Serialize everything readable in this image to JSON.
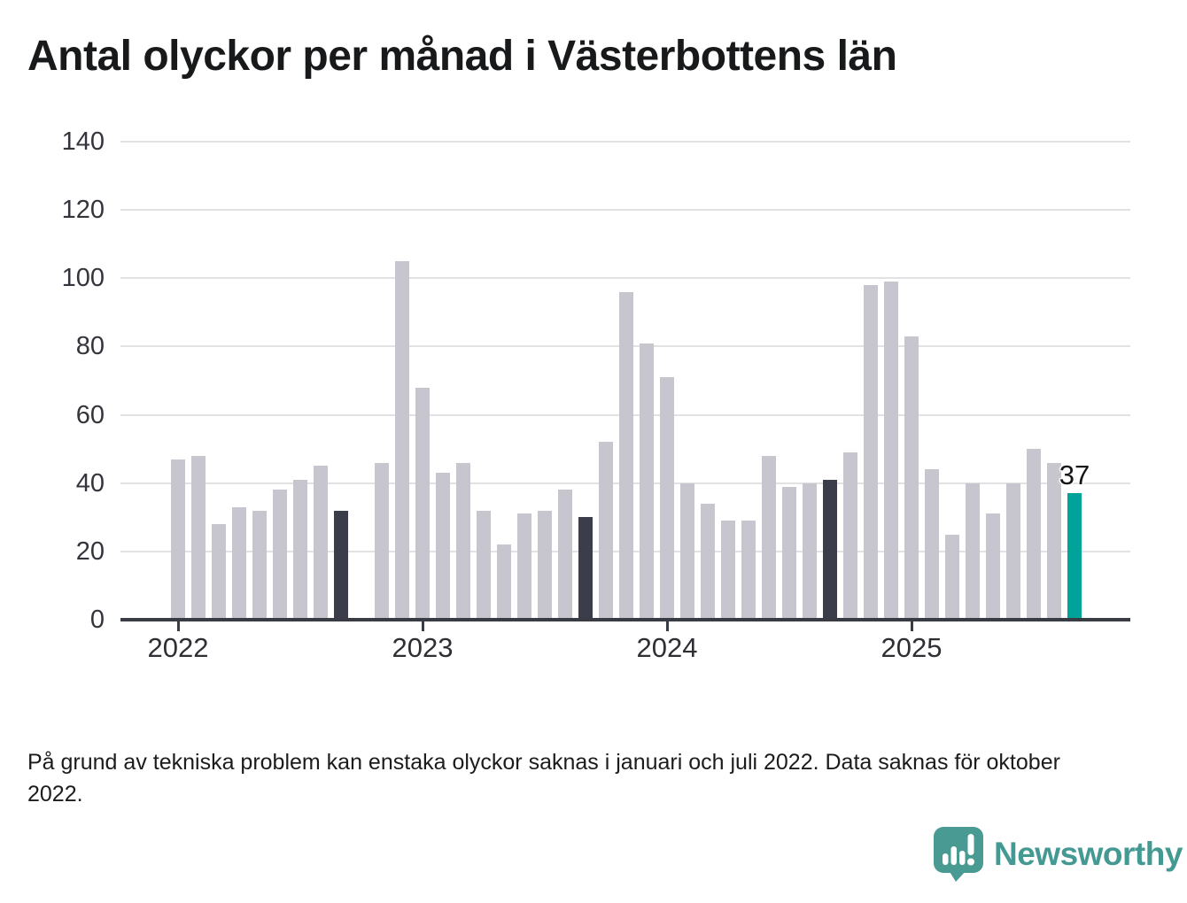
{
  "title": "Antal olyckor per månad i Västerbottens län",
  "footnote": "På grund av tekniska problem kan enstaka olyckor saknas i januari och juli 2022. Data saknas för oktober 2022.",
  "logo": {
    "brand": "Newsworthy",
    "icon": "newsworthy-speech-bubble-bar-chart-icon"
  },
  "colors": {
    "bar": "#c7c6cf",
    "bar_dark": "#3b3d4b",
    "bar_teal": "#00a39a",
    "grid": "#e2e2e4",
    "axis": "#3a3c44",
    "logo_teal": "#449a93",
    "text": "#18191a"
  },
  "chart_data": {
    "type": "bar",
    "title": "Antal olyckor per månad i Västerbottens län",
    "xlabel": "",
    "ylabel": "",
    "ylim": [
      0,
      140
    ],
    "yticks": [
      0,
      20,
      40,
      60,
      80,
      100,
      120,
      140
    ],
    "grid": "horizontal",
    "legend": "none",
    "year_ticks": [
      "2022",
      "2023",
      "2024",
      "2025"
    ],
    "annotation": {
      "label": "37",
      "month": "2025-09"
    },
    "highlight_note": "September bars 2022-2024 dark; September 2025 teal; October 2022 missing",
    "months": [
      {
        "month": "2022-01",
        "value": 47,
        "style": "normal"
      },
      {
        "month": "2022-02",
        "value": 48,
        "style": "normal"
      },
      {
        "month": "2022-03",
        "value": 28,
        "style": "normal"
      },
      {
        "month": "2022-04",
        "value": 33,
        "style": "normal"
      },
      {
        "month": "2022-05",
        "value": 32,
        "style": "normal"
      },
      {
        "month": "2022-06",
        "value": 38,
        "style": "normal"
      },
      {
        "month": "2022-07",
        "value": 41,
        "style": "normal"
      },
      {
        "month": "2022-08",
        "value": 45,
        "style": "normal"
      },
      {
        "month": "2022-09",
        "value": 32,
        "style": "dark"
      },
      {
        "month": "2022-10",
        "value": null,
        "style": "missing"
      },
      {
        "month": "2022-11",
        "value": 46,
        "style": "normal"
      },
      {
        "month": "2022-12",
        "value": 105,
        "style": "normal"
      },
      {
        "month": "2023-01",
        "value": 68,
        "style": "normal"
      },
      {
        "month": "2023-02",
        "value": 43,
        "style": "normal"
      },
      {
        "month": "2023-03",
        "value": 46,
        "style": "normal"
      },
      {
        "month": "2023-04",
        "value": 32,
        "style": "normal"
      },
      {
        "month": "2023-05",
        "value": 22,
        "style": "normal"
      },
      {
        "month": "2023-06",
        "value": 31,
        "style": "normal"
      },
      {
        "month": "2023-07",
        "value": 32,
        "style": "normal"
      },
      {
        "month": "2023-08",
        "value": 38,
        "style": "normal"
      },
      {
        "month": "2023-09",
        "value": 30,
        "style": "dark"
      },
      {
        "month": "2023-10",
        "value": 52,
        "style": "normal"
      },
      {
        "month": "2023-11",
        "value": 96,
        "style": "normal"
      },
      {
        "month": "2023-12",
        "value": 81,
        "style": "normal"
      },
      {
        "month": "2024-01",
        "value": 71,
        "style": "normal"
      },
      {
        "month": "2024-02",
        "value": 40,
        "style": "normal"
      },
      {
        "month": "2024-03",
        "value": 34,
        "style": "normal"
      },
      {
        "month": "2024-04",
        "value": 29,
        "style": "normal"
      },
      {
        "month": "2024-05",
        "value": 29,
        "style": "normal"
      },
      {
        "month": "2024-06",
        "value": 48,
        "style": "normal"
      },
      {
        "month": "2024-07",
        "value": 39,
        "style": "normal"
      },
      {
        "month": "2024-08",
        "value": 40,
        "style": "normal"
      },
      {
        "month": "2024-09",
        "value": 41,
        "style": "dark"
      },
      {
        "month": "2024-10",
        "value": 49,
        "style": "normal"
      },
      {
        "month": "2024-11",
        "value": 98,
        "style": "normal"
      },
      {
        "month": "2024-12",
        "value": 99,
        "style": "normal"
      },
      {
        "month": "2025-01",
        "value": 83,
        "style": "normal"
      },
      {
        "month": "2025-02",
        "value": 44,
        "style": "normal"
      },
      {
        "month": "2025-03",
        "value": 25,
        "style": "normal"
      },
      {
        "month": "2025-04",
        "value": 40,
        "style": "normal"
      },
      {
        "month": "2025-05",
        "value": 31,
        "style": "normal"
      },
      {
        "month": "2025-06",
        "value": 40,
        "style": "normal"
      },
      {
        "month": "2025-07",
        "value": 50,
        "style": "normal"
      },
      {
        "month": "2025-08",
        "value": 46,
        "style": "normal"
      },
      {
        "month": "2025-09",
        "value": 37,
        "style": "teal"
      }
    ]
  }
}
